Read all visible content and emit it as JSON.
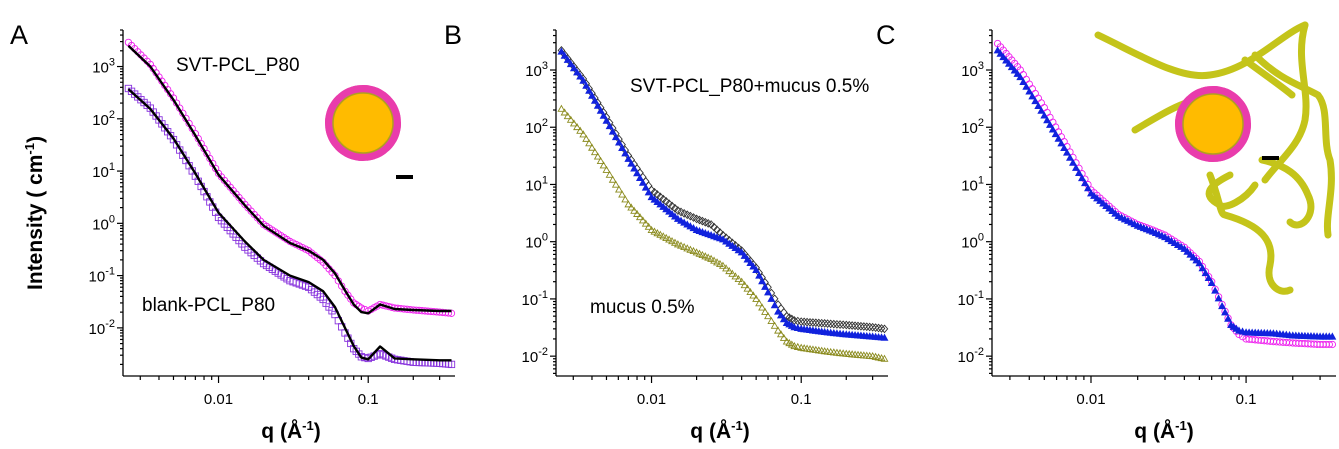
{
  "figure": {
    "ylabel": "Intensity ( cm",
    "ylabel_sup": "-1",
    "ylabel_end": ")",
    "xlabel": "q (Å",
    "xlabel_sup": "-1",
    "xlabel_end": ")"
  },
  "panels": [
    {
      "letter": "A",
      "annotations": [
        "SVT-PCL_P80",
        "blank-PCL_P80"
      ]
    },
    {
      "letter": "B",
      "annotations": [
        "SVT-PCL_P80+mucus 0.5%",
        "mucus 0.5%"
      ]
    },
    {
      "letter": "C",
      "annotations": []
    }
  ],
  "chart_data": [
    {
      "type": "scatter",
      "panel": "A",
      "xscale": "log",
      "yscale": "log",
      "xlim": [
        0.0023,
        0.38
      ],
      "ylim": [
        0.0012,
        5000
      ],
      "xticks": [
        0.01,
        0.1
      ],
      "xtick_labels": [
        "0.01",
        "0.1"
      ],
      "yticks": [
        0.01,
        0.1,
        1,
        10,
        100,
        1000
      ],
      "ytick_labels": [
        [
          "10",
          "-2"
        ],
        [
          "10",
          "-1"
        ],
        [
          "10",
          "0"
        ],
        [
          "10",
          "1"
        ],
        [
          "10",
          "2"
        ],
        [
          "10",
          "3"
        ]
      ],
      "series": [
        {
          "name": "SVT-PCL_P80",
          "marker": "circle-open",
          "color": "#ee22ee",
          "x": [
            0.0025,
            0.0035,
            0.005,
            0.007,
            0.01,
            0.015,
            0.02,
            0.03,
            0.04,
            0.05,
            0.06,
            0.07,
            0.08,
            0.09,
            0.1,
            0.12,
            0.15,
            0.2,
            0.3,
            0.36
          ],
          "y": [
            2900,
            1100,
            250,
            52,
            9,
            2.3,
            0.95,
            0.45,
            0.3,
            0.18,
            0.1,
            0.05,
            0.03,
            0.024,
            0.021,
            0.028,
            0.024,
            0.022,
            0.02,
            0.019
          ]
        },
        {
          "name": "SVT-PCL_P80 fit",
          "marker": "line",
          "color": "#000000",
          "x": [
            0.0025,
            0.0035,
            0.005,
            0.007,
            0.01,
            0.015,
            0.02,
            0.03,
            0.04,
            0.05,
            0.06,
            0.07,
            0.08,
            0.09,
            0.1,
            0.12,
            0.15,
            0.2,
            0.3,
            0.36
          ],
          "y": [
            2500,
            1000,
            230,
            48,
            8.5,
            2.2,
            0.9,
            0.42,
            0.3,
            0.2,
            0.11,
            0.052,
            0.028,
            0.02,
            0.019,
            0.028,
            0.023,
            0.022,
            0.021,
            0.021
          ]
        },
        {
          "name": "blank-PCL_P80",
          "marker": "square-open",
          "color": "#8833dd",
          "x": [
            0.0025,
            0.0035,
            0.005,
            0.007,
            0.01,
            0.015,
            0.02,
            0.03,
            0.04,
            0.05,
            0.06,
            0.07,
            0.08,
            0.09,
            0.1,
            0.12,
            0.15,
            0.2,
            0.3,
            0.36
          ],
          "y": [
            380,
            160,
            40,
            8,
            1.3,
            0.35,
            0.17,
            0.08,
            0.06,
            0.035,
            0.018,
            0.008,
            0.004,
            0.0028,
            0.0026,
            0.0032,
            0.0025,
            0.0022,
            0.0021,
            0.002
          ]
        },
        {
          "name": "blank-PCL_P80 fit",
          "marker": "line",
          "color": "#000000",
          "x": [
            0.0025,
            0.0035,
            0.005,
            0.007,
            0.01,
            0.015,
            0.02,
            0.03,
            0.04,
            0.05,
            0.06,
            0.07,
            0.08,
            0.09,
            0.1,
            0.12,
            0.15,
            0.2,
            0.3,
            0.36
          ],
          "y": [
            370,
            155,
            42,
            9,
            1.6,
            0.45,
            0.2,
            0.1,
            0.075,
            0.05,
            0.025,
            0.01,
            0.0045,
            0.0027,
            0.0025,
            0.0044,
            0.0026,
            0.0025,
            0.0024,
            0.0024
          ]
        }
      ]
    },
    {
      "type": "scatter",
      "panel": "B",
      "xscale": "log",
      "yscale": "log",
      "xlim": [
        0.0023,
        0.38
      ],
      "ylim": [
        0.0045,
        5000
      ],
      "xticks": [
        0.01,
        0.1
      ],
      "xtick_labels": [
        "0.01",
        "0.1"
      ],
      "yticks": [
        0.01,
        0.1,
        1,
        10,
        100,
        1000
      ],
      "ytick_labels": [
        [
          "10",
          "-2"
        ],
        [
          "10",
          "-1"
        ],
        [
          "10",
          "0"
        ],
        [
          "10",
          "1"
        ],
        [
          "10",
          "2"
        ],
        [
          "10",
          "3"
        ]
      ],
      "series": [
        {
          "name": "SVT-PCL_P80+mucus 0.5%",
          "marker": "diamond-open",
          "color": "#333333",
          "x": [
            0.0025,
            0.0035,
            0.005,
            0.007,
            0.01,
            0.015,
            0.02,
            0.025,
            0.03,
            0.04,
            0.05,
            0.06,
            0.07,
            0.08,
            0.09,
            0.1,
            0.15,
            0.2,
            0.3,
            0.36
          ],
          "y": [
            2200,
            700,
            150,
            32,
            8,
            3.5,
            2.5,
            2,
            1.3,
            0.7,
            0.35,
            0.16,
            0.08,
            0.05,
            0.042,
            0.04,
            0.037,
            0.035,
            0.032,
            0.03
          ]
        },
        {
          "name": "blue",
          "marker": "triangle-filled",
          "color": "#1122dd",
          "x": [
            0.0025,
            0.0035,
            0.005,
            0.007,
            0.01,
            0.015,
            0.02,
            0.025,
            0.03,
            0.04,
            0.05,
            0.06,
            0.07,
            0.08,
            0.09,
            0.1,
            0.15,
            0.2,
            0.3,
            0.36
          ],
          "y": [
            2100,
            650,
            130,
            28,
            6,
            2.5,
            1.6,
            1.3,
            1.1,
            0.65,
            0.32,
            0.13,
            0.06,
            0.038,
            0.032,
            0.03,
            0.026,
            0.024,
            0.022,
            0.021
          ]
        },
        {
          "name": "mucus 0.5%",
          "marker": "triangle-open",
          "color": "#8b8b1e",
          "x": [
            0.0025,
            0.0035,
            0.005,
            0.007,
            0.01,
            0.015,
            0.02,
            0.025,
            0.03,
            0.04,
            0.05,
            0.06,
            0.07,
            0.08,
            0.09,
            0.1,
            0.15,
            0.2,
            0.3,
            0.36
          ],
          "y": [
            210,
            75,
            18,
            4.5,
            1.6,
            0.9,
            0.65,
            0.5,
            0.38,
            0.2,
            0.1,
            0.05,
            0.028,
            0.018,
            0.015,
            0.014,
            0.012,
            0.011,
            0.01,
            0.009
          ]
        }
      ]
    },
    {
      "type": "scatter",
      "panel": "C",
      "xscale": "log",
      "yscale": "log",
      "xlim": [
        0.0023,
        0.38
      ],
      "ylim": [
        0.0045,
        5000
      ],
      "xticks": [
        0.01,
        0.1
      ],
      "xtick_labels": [
        "0.01",
        "0.1"
      ],
      "yticks": [
        0.01,
        0.1,
        1,
        10,
        100,
        1000
      ],
      "ytick_labels": [
        [
          "10",
          "-2"
        ],
        [
          "10",
          "-1"
        ],
        [
          "10",
          "0"
        ],
        [
          "10",
          "1"
        ],
        [
          "10",
          "2"
        ],
        [
          "10",
          "3"
        ]
      ],
      "series": [
        {
          "name": "magenta",
          "marker": "circle-open",
          "color": "#ee22ee",
          "x": [
            0.0025,
            0.0035,
            0.005,
            0.007,
            0.01,
            0.015,
            0.02,
            0.025,
            0.03,
            0.04,
            0.05,
            0.06,
            0.07,
            0.08,
            0.09,
            0.1,
            0.15,
            0.2,
            0.3,
            0.36
          ],
          "y": [
            2900,
            1000,
            220,
            46,
            8,
            3,
            2,
            1.6,
            1.3,
            0.8,
            0.45,
            0.2,
            0.08,
            0.035,
            0.024,
            0.02,
            0.018,
            0.017,
            0.016,
            0.016
          ]
        },
        {
          "name": "blue",
          "marker": "triangle-filled",
          "color": "#1122dd",
          "x": [
            0.0025,
            0.0035,
            0.005,
            0.007,
            0.01,
            0.015,
            0.02,
            0.025,
            0.03,
            0.04,
            0.05,
            0.06,
            0.07,
            0.08,
            0.09,
            0.1,
            0.15,
            0.2,
            0.3,
            0.36
          ],
          "y": [
            2200,
            750,
            160,
            36,
            7,
            2.8,
            1.9,
            1.5,
            1.2,
            0.75,
            0.42,
            0.19,
            0.075,
            0.035,
            0.028,
            0.026,
            0.025,
            0.023,
            0.022,
            0.022
          ]
        }
      ]
    }
  ]
}
